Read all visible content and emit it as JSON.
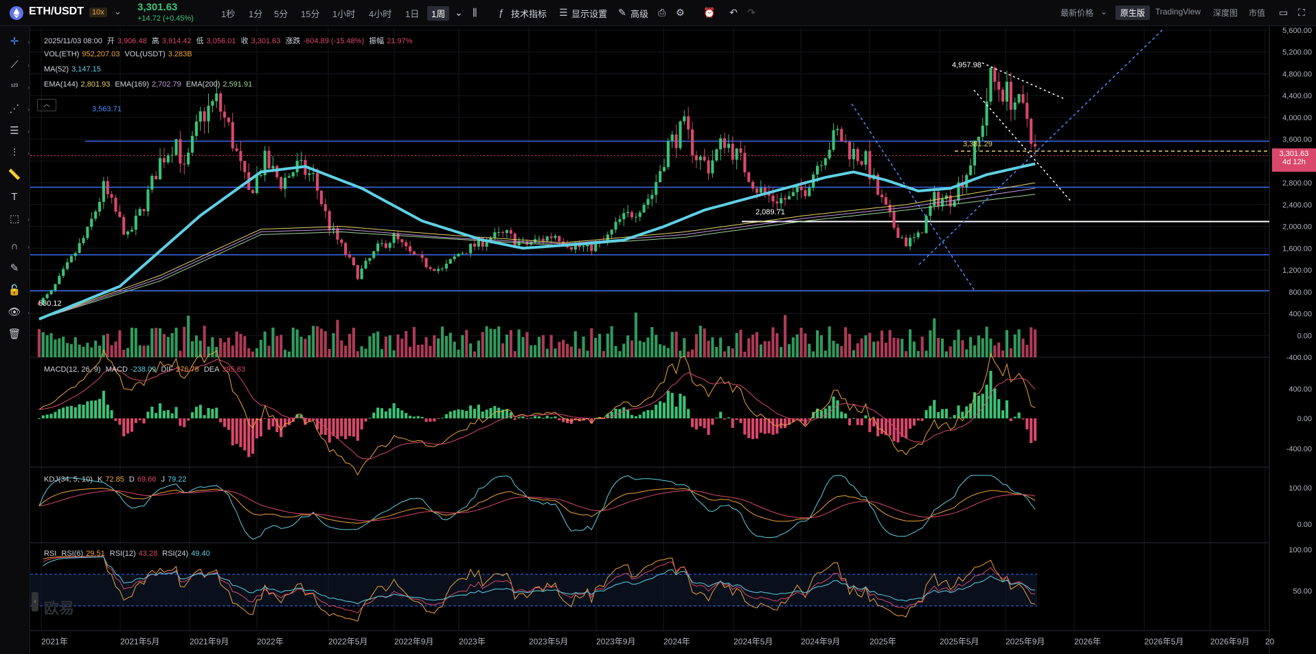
{
  "topbar": {
    "symbol": "ETH/USDT",
    "leverage": "10x",
    "last_price": "3,301.63",
    "change": "+14.72 (+0.45%)",
    "intervals": [
      "1秒",
      "1分",
      "5分",
      "15分",
      "1小时",
      "4小时",
      "1日",
      "1周"
    ],
    "active_interval": "1周",
    "buttons": {
      "indicators": "技术指标",
      "display": "显示设置",
      "advanced": "高级"
    },
    "price_type": "最新价格",
    "views": [
      "原生版",
      "TradingView",
      "深度图",
      "市值"
    ],
    "active_view": "原生版"
  },
  "legend": {
    "ohlc": {
      "date": "2025/11/03 08:00",
      "open_label": "开",
      "open": "3,906.48",
      "high_label": "高",
      "high": "3,914.42",
      "low_label": "低",
      "low": "3,056.01",
      "close_label": "收",
      "close": "3,301.63",
      "chg_label": "涨跌",
      "chg": "-604.89 (-15.48%)",
      "amp_label": "振幅",
      "amp": "21.97%"
    },
    "vol": {
      "eth_label": "VOL(ETH)",
      "eth": "952,207.03",
      "usdt_label": "VOL(USDT)",
      "usdt": "3.283B"
    },
    "ma": {
      "label": "MA(52)",
      "value": "3,147.15"
    },
    "ema": {
      "l144": "EMA(144)",
      "v144": "2,801.93",
      "l169": "EMA(169)",
      "v169": "2,702.79",
      "l200": "EMA(200)",
      "v200": "2,591.91"
    },
    "macd": {
      "label": "MACD(12, 26, 9)",
      "m_label": "MACD",
      "m": "-238.09",
      "dif_label": "DIF",
      "dif": "276.78",
      "dea_label": "DEA",
      "dea": "395.83"
    },
    "kdj": {
      "label": "KDJ(34, 5, 10)",
      "k_label": "K",
      "k": "72.85",
      "d_label": "D",
      "d": "69.66",
      "j_label": "J",
      "j": "79.22"
    },
    "rsi": {
      "label": "RSI",
      "r6_label": "RSI(6)",
      "r6": "29.51",
      "r12_label": "RSI(12)",
      "r12": "43.28",
      "r24_label": "RSI(24)",
      "r24": "49.40"
    }
  },
  "price_tag": {
    "price": "3,301.63",
    "countdown": "4d 12h"
  },
  "watermark": "欧易",
  "colors": {
    "up": "#39c276",
    "down": "#d9486b",
    "ma": "#5fd0e4",
    "hline": "#3d6cf0",
    "ema144": "#e8d36a",
    "ema169": "#c69ae0",
    "ema200": "#9fd49a"
  },
  "chart_data": {
    "type": "candlestick",
    "main_axis": {
      "ylim": [
        -400,
        5600
      ],
      "ticks": [
        "5,600.00",
        "5,200.00",
        "4,800.00",
        "4,400.00",
        "4,000.00",
        "3,600.00",
        "3,200.00",
        "2,800.00",
        "2,400.00",
        "2,000.00",
        "1,600.00",
        "1,200.00",
        "800.00",
        "400.00",
        "0.00",
        "-400.00"
      ]
    },
    "macd_axis": {
      "ticks": [
        "400.00",
        "0.00",
        "-400.00"
      ]
    },
    "kdj_axis": {
      "ticks": [
        "100.00",
        "0.00"
      ]
    },
    "rsi_axis": {
      "ticks": [
        "100.00",
        "50.00"
      ]
    },
    "x_labels": [
      "2021年",
      "2021年5月",
      "2021年9月",
      "2022年",
      "2022年5月",
      "2022年9月",
      "2023年",
      "2023年5月",
      "2023年9月",
      "2024年",
      "2024年5月",
      "2024年9月",
      "2025年",
      "2025年5月",
      "2025年9月",
      "2026年",
      "2026年5月",
      "2026年9月",
      "20"
    ],
    "horizontal_levels": [
      3563.71,
      2720,
      1480,
      820,
      2089.71
    ],
    "price_annotations": [
      {
        "text": "3,563.71",
        "value": 3563.71
      },
      {
        "text": "4,957.98",
        "value": 4957.98
      },
      {
        "text": "3,381.29",
        "value": 3381.29
      },
      {
        "text": "2,089.71",
        "value": 2089.71
      },
      {
        "text": "530.12",
        "value": 530.12
      }
    ],
    "price_path": [
      [
        0,
        600
      ],
      [
        3,
        800
      ],
      [
        8,
        1400
      ],
      [
        12,
        1900
      ],
      [
        16,
        2700
      ],
      [
        18,
        2400
      ],
      [
        22,
        1800
      ],
      [
        26,
        2400
      ],
      [
        30,
        3200
      ],
      [
        34,
        3600
      ],
      [
        36,
        3000
      ],
      [
        40,
        4000
      ],
      [
        44,
        4300
      ],
      [
        47,
        3800
      ],
      [
        52,
        2600
      ],
      [
        56,
        3200
      ],
      [
        60,
        2800
      ],
      [
        64,
        3100
      ],
      [
        68,
        2900
      ],
      [
        72,
        2000
      ],
      [
        76,
        1500
      ],
      [
        79,
        1100
      ],
      [
        84,
        1600
      ],
      [
        88,
        1800
      ],
      [
        92,
        1500
      ],
      [
        96,
        1300
      ],
      [
        100,
        1200
      ],
      [
        104,
        1500
      ],
      [
        108,
        1650
      ],
      [
        112,
        1800
      ],
      [
        116,
        1850
      ],
      [
        120,
        1650
      ],
      [
        124,
        1750
      ],
      [
        128,
        1850
      ],
      [
        132,
        1650
      ],
      [
        136,
        1600
      ],
      [
        140,
        1700
      ],
      [
        144,
        2100
      ],
      [
        148,
        2300
      ],
      [
        152,
        2600
      ],
      [
        156,
        3500
      ],
      [
        160,
        3800
      ],
      [
        163,
        3300
      ],
      [
        166,
        3100
      ],
      [
        170,
        3600
      ],
      [
        174,
        3200
      ],
      [
        178,
        2700
      ],
      [
        182,
        2500
      ],
      [
        186,
        2500
      ],
      [
        190,
        2700
      ],
      [
        194,
        3300
      ],
      [
        198,
        3700
      ],
      [
        201,
        3400
      ],
      [
        205,
        3200
      ],
      [
        208,
        2600
      ],
      [
        212,
        2000
      ],
      [
        215,
        1700
      ],
      [
        218,
        1800
      ],
      [
        222,
        2500
      ],
      [
        226,
        2500
      ],
      [
        230,
        3000
      ],
      [
        233,
        3600
      ],
      [
        236,
        4700
      ],
      [
        239,
        4500
      ],
      [
        242,
        4300
      ],
      [
        245,
        4000
      ],
      [
        247,
        3400
      ]
    ],
    "series_ma52": [
      [
        0,
        300
      ],
      [
        20,
        900
      ],
      [
        40,
        2200
      ],
      [
        55,
        3000
      ],
      [
        66,
        3100
      ],
      [
        80,
        2700
      ],
      [
        95,
        2100
      ],
      [
        110,
        1750
      ],
      [
        120,
        1600
      ],
      [
        135,
        1680
      ],
      [
        145,
        1750
      ],
      [
        155,
        2000
      ],
      [
        165,
        2300
      ],
      [
        175,
        2500
      ],
      [
        185,
        2700
      ],
      [
        195,
        2900
      ],
      [
        202,
        3000
      ],
      [
        210,
        2850
      ],
      [
        218,
        2650
      ],
      [
        226,
        2700
      ],
      [
        235,
        2950
      ],
      [
        247,
        3150
      ]
    ],
    "series_ema144": [
      [
        0,
        300
      ],
      [
        30,
        1100
      ],
      [
        55,
        1950
      ],
      [
        75,
        2000
      ],
      [
        100,
        1850
      ],
      [
        130,
        1700
      ],
      [
        160,
        1900
      ],
      [
        190,
        2200
      ],
      [
        215,
        2400
      ],
      [
        247,
        2800
      ]
    ],
    "series_ema169": [
      [
        0,
        300
      ],
      [
        30,
        1050
      ],
      [
        55,
        1900
      ],
      [
        75,
        1950
      ],
      [
        100,
        1800
      ],
      [
        130,
        1680
      ],
      [
        160,
        1850
      ],
      [
        190,
        2150
      ],
      [
        215,
        2350
      ],
      [
        247,
        2700
      ]
    ],
    "series_ema200": [
      [
        0,
        300
      ],
      [
        30,
        1000
      ],
      [
        55,
        1850
      ],
      [
        75,
        1900
      ],
      [
        100,
        1780
      ],
      [
        130,
        1650
      ],
      [
        160,
        1800
      ],
      [
        190,
        2100
      ],
      [
        215,
        2300
      ],
      [
        247,
        2590
      ]
    ]
  }
}
